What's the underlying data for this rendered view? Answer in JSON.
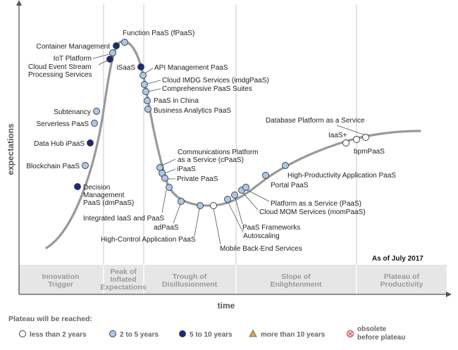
{
  "axis": {
    "y_label": "expectations",
    "x_label": "time"
  },
  "as_of": "As of July 2017",
  "phases": [
    {
      "id": "innovation",
      "lines": [
        "Innovation",
        "Trigger"
      ]
    },
    {
      "id": "peak",
      "lines": [
        "Peak of",
        "Inflated",
        "Expectations"
      ]
    },
    {
      "id": "trough",
      "lines": [
        "Trough of",
        "Disillusionment"
      ]
    },
    {
      "id": "slope",
      "lines": [
        "Slope of",
        "Enlightenment"
      ]
    },
    {
      "id": "plateau",
      "lines": [
        "Plateau of",
        "Productivity"
      ]
    }
  ],
  "legend": {
    "title": "Plateau will be reached:",
    "items": [
      {
        "key": "lt2",
        "label": "less than 2 years"
      },
      {
        "key": "2to5",
        "label": "2 to 5 years"
      },
      {
        "key": "5to10",
        "label": "5 to 10 years"
      },
      {
        "key": "gt10",
        "label": "more than 10 years"
      },
      {
        "key": "obsolete",
        "label": "obsolete before plateau"
      }
    ]
  },
  "technologies": [
    {
      "id": "decision-management",
      "lines": [
        "Decision",
        "Management",
        "PaaS (dmPaaS)"
      ],
      "plateau": "5to10"
    },
    {
      "id": "blockchain-paas",
      "lines": [
        "Blockchain PaaS"
      ],
      "plateau": "2to5"
    },
    {
      "id": "data-hub-ipaas",
      "lines": [
        "Data Hub iPaaS"
      ],
      "plateau": "5to10"
    },
    {
      "id": "serverless-paas",
      "lines": [
        "Serverless PaaS"
      ],
      "plateau": "2to5"
    },
    {
      "id": "subtenancy",
      "lines": [
        "Subtenancy"
      ],
      "plateau": "2to5"
    },
    {
      "id": "cloud-event-stream",
      "lines": [
        "Cloud Event Stream",
        "Processing Services"
      ],
      "plateau": "5to10"
    },
    {
      "id": "iot-platform",
      "lines": [
        "IoT Platform"
      ],
      "plateau": "2to5"
    },
    {
      "id": "container-management",
      "lines": [
        "Container Management"
      ],
      "plateau": "5to10"
    },
    {
      "id": "function-paas",
      "lines": [
        "Function PaaS (fPaaS)"
      ],
      "plateau": "2to5"
    },
    {
      "id": "isaas",
      "lines": [
        "iSaaS"
      ],
      "plateau": "5to10"
    },
    {
      "id": "api-management-paas",
      "lines": [
        "API Management PaaS"
      ],
      "plateau": "2to5"
    },
    {
      "id": "cloud-imdg",
      "lines": [
        "Cloud IMDG Services (imdgPaaS)"
      ],
      "plateau": "2to5"
    },
    {
      "id": "comprehensive-paas",
      "lines": [
        "Comprehensive PaaS Suites"
      ],
      "plateau": "2to5"
    },
    {
      "id": "paas-in-china",
      "lines": [
        "PaaS in China"
      ],
      "plateau": "2to5"
    },
    {
      "id": "business-analytics-paas",
      "lines": [
        "Business Analytics PaaS"
      ],
      "plateau": "2to5"
    },
    {
      "id": "communications-platform",
      "lines": [
        "Communications Platform",
        "as a Service (cPaaS)"
      ],
      "plateau": "2to5"
    },
    {
      "id": "ipaas",
      "lines": [
        "iPaaS"
      ],
      "plateau": "2to5"
    },
    {
      "id": "private-paas",
      "lines": [
        "Private PaaS"
      ],
      "plateau": "2to5"
    },
    {
      "id": "integrated-iaas-paas",
      "lines": [
        "Integrated IaaS and PaaS"
      ],
      "plateau": "2to5"
    },
    {
      "id": "adpaas",
      "lines": [
        "adPaaS"
      ],
      "plateau": "2to5"
    },
    {
      "id": "high-control-paas",
      "lines": [
        "High-Control Application PaaS"
      ],
      "plateau": "2to5"
    },
    {
      "id": "mobile-back-end",
      "lines": [
        "Mobile Back-End Services"
      ],
      "plateau": "lt2"
    },
    {
      "id": "autoscaling",
      "lines": [
        "Autoscaling"
      ],
      "plateau": "2to5"
    },
    {
      "id": "paas-frameworks",
      "lines": [
        "PaaS Frameworks"
      ],
      "plateau": "2to5"
    },
    {
      "id": "cloud-mom",
      "lines": [
        "Cloud MOM Services (momPaaS)"
      ],
      "plateau": "2to5"
    },
    {
      "id": "platform-as-a-service",
      "lines": [
        "Platform as a Service (PaaS)"
      ],
      "plateau": "2to5"
    },
    {
      "id": "portal-paas",
      "lines": [
        "Portal PaaS"
      ],
      "plateau": "2to5"
    },
    {
      "id": "high-productivity-paas",
      "lines": [
        "High-Productivity Application PaaS"
      ],
      "plateau": "2to5"
    },
    {
      "id": "iaas-plus",
      "lines": [
        "IaaS+"
      ],
      "plateau": "lt2"
    },
    {
      "id": "database-platform",
      "lines": [
        "Database Platform as a Service"
      ],
      "plateau": "lt2"
    },
    {
      "id": "bpmpaas",
      "lines": [
        "bpmPaaS"
      ],
      "plateau": "lt2"
    }
  ],
  "colors": {
    "curve": "#999999",
    "lt2": "#ffffff",
    "2to5": "#a9c8ec",
    "5to10": "#1b2a78",
    "gt10": "#e7a83a",
    "obsolete": "#e05050",
    "phase_band": "#e6e6e6"
  }
}
